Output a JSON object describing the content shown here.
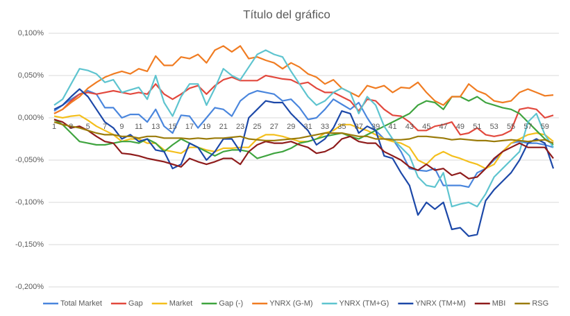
{
  "chart_data": {
    "type": "line",
    "title": "Título del gráfico",
    "categories": [
      "1",
      null,
      "3",
      null,
      "5",
      null,
      "7",
      null,
      "9",
      null,
      "11",
      null,
      "13",
      null,
      "15",
      null,
      "17",
      null,
      "19",
      null,
      "21",
      null,
      "23",
      null,
      "25",
      null,
      "27",
      null,
      "29",
      null,
      "31",
      null,
      "33",
      null,
      "35",
      null,
      "37",
      null,
      "39",
      null,
      "41",
      null,
      "43",
      null,
      "45",
      null,
      "47",
      null,
      "49",
      null,
      "51",
      null,
      "53",
      null,
      "55",
      null,
      "57",
      null,
      "59",
      null
    ],
    "ylim": [
      -0.2,
      0.1
    ],
    "yticks": [
      {
        "value": 0.1,
        "label": "0,100%"
      },
      {
        "value": 0.05,
        "label": "0,050%"
      },
      {
        "value": 0,
        "label": "0,000%"
      },
      {
        "value": -0.05,
        "label": "-0,050%"
      },
      {
        "value": -0.1,
        "label": "-0,100%"
      },
      {
        "value": -0.15,
        "label": "-0,150%"
      },
      {
        "value": -0.2,
        "label": "-0,200%"
      }
    ],
    "grid": true,
    "legend": "bottom",
    "series": [
      {
        "name": "Total Market",
        "color": "#4a86dd",
        "values": [
          0.008,
          0.015,
          0.022,
          0.028,
          0.032,
          0.028,
          0.012,
          0.012,
          0.0,
          0.004,
          0.004,
          -0.005,
          0.01,
          -0.01,
          -0.018,
          0.003,
          0.002,
          -0.012,
          0.0,
          0.012,
          0.01,
          0.002,
          0.02,
          0.028,
          0.032,
          0.03,
          0.028,
          0.02,
          0.022,
          0.012,
          -0.002,
          0.0,
          0.01,
          0.022,
          0.016,
          0.01,
          0.018,
          0.0,
          -0.015,
          -0.025,
          -0.025,
          -0.04,
          -0.06,
          -0.062,
          -0.063,
          -0.06,
          -0.08,
          -0.08,
          -0.08,
          -0.082,
          -0.065,
          -0.06,
          -0.05,
          -0.04,
          -0.03,
          -0.028,
          -0.03,
          -0.03,
          -0.032,
          -0.035
        ]
      },
      {
        "name": "Gap",
        "color": "#e2483d",
        "values": [
          0.005,
          0.01,
          0.02,
          0.028,
          0.03,
          0.028,
          0.03,
          0.032,
          0.03,
          0.028,
          0.03,
          0.028,
          0.04,
          0.028,
          0.022,
          0.028,
          0.035,
          0.038,
          0.028,
          0.038,
          0.045,
          0.048,
          0.044,
          0.044,
          0.044,
          0.05,
          0.048,
          0.046,
          0.045,
          0.04,
          0.042,
          0.035,
          0.03,
          0.03,
          0.025,
          0.02,
          0.008,
          0.022,
          0.02,
          0.01,
          0.003,
          0.002,
          -0.005,
          -0.015,
          -0.015,
          -0.01,
          -0.008,
          -0.005,
          -0.02,
          -0.018,
          -0.012,
          -0.02,
          -0.022,
          -0.02,
          -0.015,
          0.01,
          0.012,
          0.01,
          0.0,
          0.003
        ]
      },
      {
        "name": "Market",
        "color": "#f4bf1c",
        "values": [
          0.002,
          0.0,
          0.002,
          0.003,
          -0.003,
          -0.01,
          -0.015,
          -0.02,
          -0.028,
          -0.025,
          -0.025,
          -0.03,
          -0.03,
          -0.038,
          -0.04,
          -0.042,
          -0.035,
          -0.035,
          -0.038,
          -0.04,
          -0.036,
          -0.036,
          -0.035,
          -0.035,
          -0.025,
          -0.02,
          -0.02,
          -0.022,
          -0.025,
          -0.028,
          -0.028,
          -0.025,
          -0.018,
          -0.015,
          -0.008,
          -0.008,
          -0.012,
          -0.015,
          -0.02,
          -0.025,
          -0.028,
          -0.03,
          -0.035,
          -0.05,
          -0.055,
          -0.045,
          -0.04,
          -0.045,
          -0.048,
          -0.052,
          -0.055,
          -0.06,
          -0.055,
          -0.04,
          -0.03,
          -0.025,
          -0.02,
          -0.018,
          -0.02,
          -0.028
        ]
      },
      {
        "name": "Gap (-)",
        "color": "#3fa43f",
        "values": [
          -0.002,
          -0.008,
          -0.018,
          -0.028,
          -0.03,
          -0.032,
          -0.032,
          -0.03,
          -0.028,
          -0.028,
          -0.03,
          -0.025,
          -0.03,
          -0.04,
          -0.032,
          -0.025,
          -0.03,
          -0.035,
          -0.04,
          -0.045,
          -0.04,
          -0.038,
          -0.038,
          -0.04,
          -0.048,
          -0.045,
          -0.042,
          -0.04,
          -0.036,
          -0.03,
          -0.028,
          -0.025,
          -0.022,
          -0.02,
          -0.018,
          -0.022,
          -0.025,
          -0.02,
          -0.015,
          -0.01,
          -0.005,
          0.0,
          0.005,
          0.015,
          0.02,
          0.018,
          0.01,
          0.025,
          0.025,
          0.02,
          0.025,
          0.018,
          0.015,
          0.012,
          0.01,
          0.005,
          -0.005,
          -0.015,
          -0.025,
          -0.032
        ]
      },
      {
        "name": "YNRX (G-M)",
        "color": "#f07c22",
        "values": [
          0.005,
          0.01,
          0.018,
          0.025,
          0.035,
          0.042,
          0.048,
          0.052,
          0.055,
          0.052,
          0.058,
          0.055,
          0.073,
          0.062,
          0.062,
          0.072,
          0.07,
          0.075,
          0.065,
          0.08,
          0.085,
          0.078,
          0.085,
          0.07,
          0.072,
          0.068,
          0.065,
          0.058,
          0.065,
          0.06,
          0.052,
          0.048,
          0.04,
          0.045,
          0.035,
          0.03,
          0.025,
          0.038,
          0.035,
          0.038,
          0.03,
          0.036,
          0.035,
          0.042,
          0.03,
          0.02,
          0.015,
          0.025,
          0.025,
          0.04,
          0.032,
          0.028,
          0.02,
          0.018,
          0.02,
          0.03,
          0.034,
          0.03,
          0.026,
          0.027
        ]
      },
      {
        "name": "YNRX (TM+G)",
        "color": "#5ec4cf",
        "values": [
          0.015,
          0.022,
          0.04,
          0.058,
          0.056,
          0.052,
          0.042,
          0.045,
          0.03,
          0.033,
          0.036,
          0.022,
          0.05,
          0.018,
          0.002,
          0.025,
          0.04,
          0.04,
          0.015,
          0.035,
          0.058,
          0.05,
          0.045,
          0.06,
          0.075,
          0.08,
          0.075,
          0.072,
          0.055,
          0.04,
          0.025,
          0.015,
          0.02,
          0.03,
          0.035,
          0.03,
          0.005,
          0.025,
          0.015,
          -0.01,
          -0.025,
          -0.035,
          -0.045,
          -0.07,
          -0.08,
          -0.082,
          -0.065,
          -0.105,
          -0.102,
          -0.1,
          -0.105,
          -0.09,
          -0.07,
          -0.06,
          -0.05,
          -0.04,
          -0.005,
          0.005,
          -0.02,
          -0.035
        ]
      },
      {
        "name": "YNRX (TM+M)",
        "color": "#1c48a8",
        "values": [
          0.01,
          0.015,
          0.025,
          0.034,
          0.025,
          0.01,
          -0.005,
          -0.012,
          -0.025,
          -0.02,
          -0.028,
          -0.025,
          -0.038,
          -0.04,
          -0.06,
          -0.055,
          -0.03,
          -0.035,
          -0.05,
          -0.04,
          -0.025,
          -0.025,
          -0.04,
          0.0,
          0.01,
          0.02,
          0.018,
          0.018,
          0.005,
          -0.005,
          -0.015,
          -0.032,
          -0.025,
          -0.012,
          0.008,
          0.005,
          -0.018,
          -0.01,
          -0.015,
          -0.045,
          -0.048,
          -0.065,
          -0.08,
          -0.115,
          -0.1,
          -0.108,
          -0.1,
          -0.132,
          -0.13,
          -0.14,
          -0.138,
          -0.098,
          -0.085,
          -0.075,
          -0.065,
          -0.05,
          -0.03,
          -0.025,
          -0.03,
          -0.06
        ]
      },
      {
        "name": "MBI",
        "color": "#8e1b1b",
        "values": [
          -0.002,
          -0.005,
          -0.012,
          -0.01,
          -0.015,
          -0.022,
          -0.028,
          -0.03,
          -0.042,
          -0.043,
          -0.045,
          -0.048,
          -0.05,
          -0.052,
          -0.055,
          -0.058,
          -0.048,
          -0.052,
          -0.055,
          -0.052,
          -0.048,
          -0.048,
          -0.055,
          -0.04,
          -0.032,
          -0.028,
          -0.03,
          -0.03,
          -0.028,
          -0.032,
          -0.035,
          -0.042,
          -0.04,
          -0.035,
          -0.025,
          -0.022,
          -0.028,
          -0.03,
          -0.03,
          -0.04,
          -0.045,
          -0.05,
          -0.058,
          -0.062,
          -0.055,
          -0.062,
          -0.06,
          -0.068,
          -0.065,
          -0.072,
          -0.07,
          -0.06,
          -0.048,
          -0.04,
          -0.035,
          -0.03,
          -0.035,
          -0.035,
          -0.035,
          -0.048
        ]
      },
      {
        "name": "RSG",
        "color": "#9a7b0a",
        "values": [
          -0.005,
          -0.008,
          -0.01,
          -0.012,
          -0.015,
          -0.018,
          -0.02,
          -0.02,
          -0.022,
          -0.022,
          -0.024,
          -0.022,
          -0.022,
          -0.024,
          -0.024,
          -0.024,
          -0.025,
          -0.024,
          -0.025,
          -0.024,
          -0.024,
          -0.023,
          -0.022,
          -0.025,
          -0.026,
          -0.027,
          -0.027,
          -0.026,
          -0.025,
          -0.024,
          -0.022,
          -0.02,
          -0.018,
          -0.018,
          -0.018,
          -0.02,
          -0.022,
          -0.022,
          -0.025,
          -0.025,
          -0.026,
          -0.026,
          -0.025,
          -0.022,
          -0.022,
          -0.023,
          -0.024,
          -0.026,
          -0.025,
          -0.026,
          -0.027,
          -0.027,
          -0.028,
          -0.027,
          -0.026,
          -0.027,
          -0.028,
          -0.027,
          -0.026,
          -0.03
        ]
      }
    ]
  }
}
